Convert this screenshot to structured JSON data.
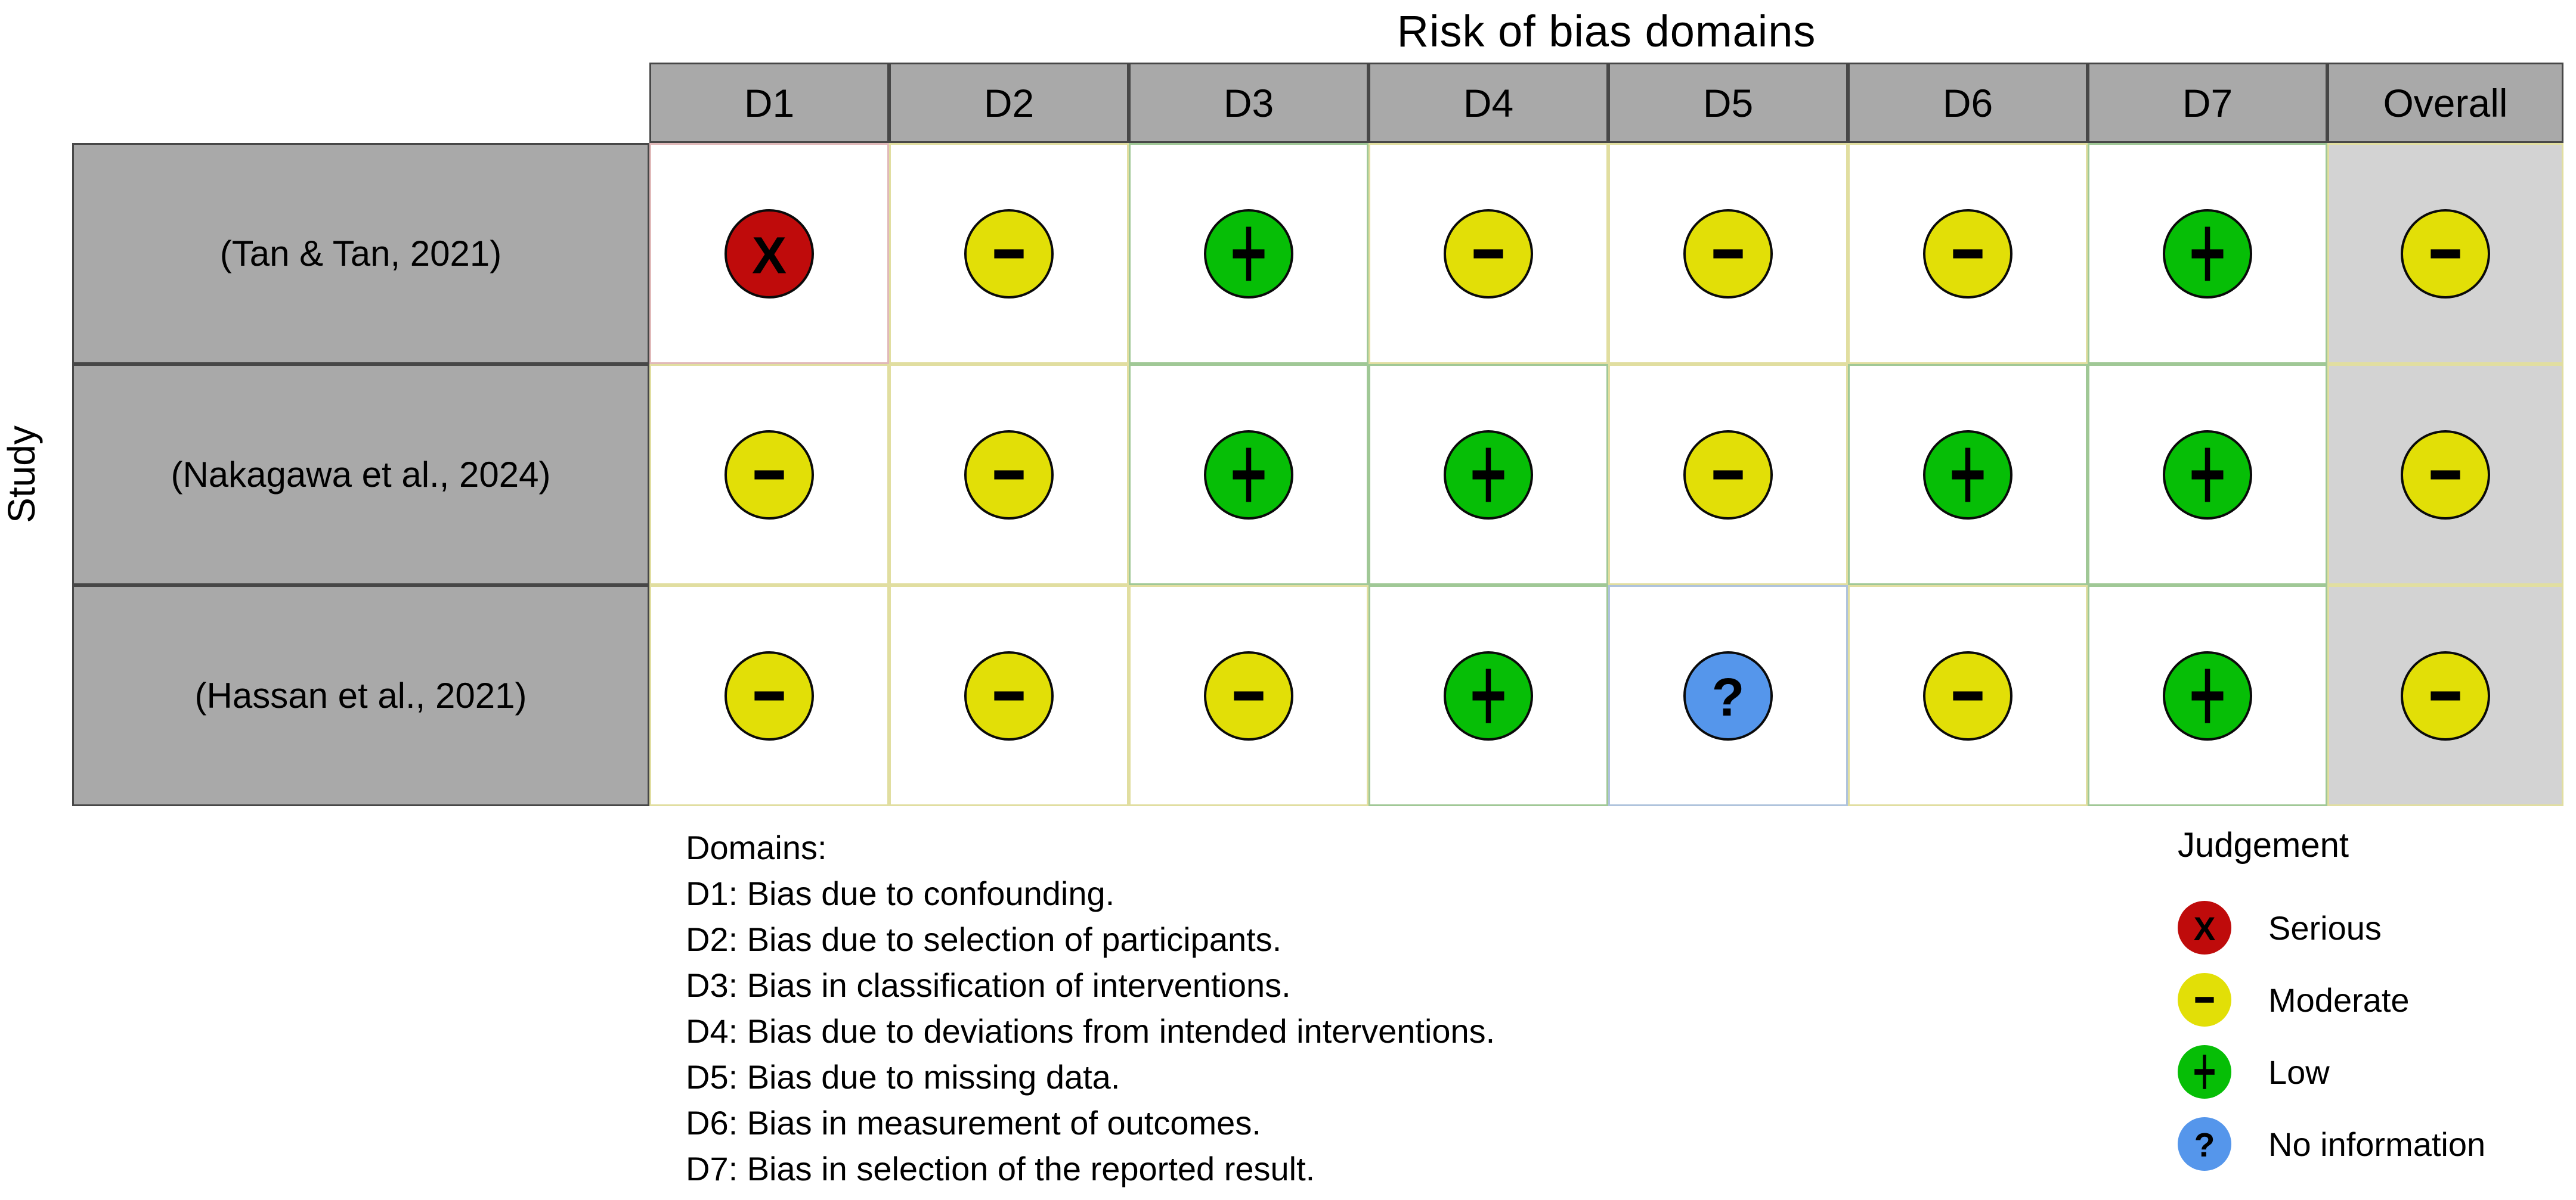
{
  "chart_data": {
    "type": "heatmap",
    "title": "Risk of bias domains",
    "ylabel": "Study",
    "columns": [
      "D1",
      "D2",
      "D3",
      "D4",
      "D5",
      "D6",
      "D7",
      "Overall"
    ],
    "rows": [
      {
        "study": "(Tan & Tan, 2021)",
        "judgements": [
          "serious",
          "moderate",
          "low",
          "moderate",
          "moderate",
          "moderate",
          "low",
          "moderate"
        ]
      },
      {
        "study": "(Nakagawa et al., 2024)",
        "judgements": [
          "moderate",
          "moderate",
          "low",
          "low",
          "moderate",
          "low",
          "low",
          "moderate"
        ]
      },
      {
        "study": "(Hassan et al., 2021)",
        "judgements": [
          "moderate",
          "moderate",
          "moderate",
          "low",
          "no_information",
          "moderate",
          "low",
          "moderate"
        ]
      }
    ],
    "legend_position": "bottom-right",
    "grid": "cell-borders-tinted-by-judgement"
  },
  "judgements": {
    "serious": {
      "label": "Serious",
      "symbol": "X",
      "color": "#BF0B0B",
      "border_tint": "#E1B9B9"
    },
    "moderate": {
      "label": "Moderate",
      "symbol": "-",
      "color": "#E2DF07",
      "border_tint": "#E1DEA0"
    },
    "low": {
      "label": "Low",
      "symbol": "+",
      "color": "#06BE06",
      "border_tint": "#A0C896"
    },
    "no_information": {
      "label": "No information",
      "symbol": "?",
      "color": "#5596EB",
      "border_tint": "#AFC3DC"
    }
  },
  "legend": {
    "title": "Judgement",
    "order": [
      "serious",
      "moderate",
      "low",
      "no_information"
    ]
  },
  "domains_note": {
    "heading": "Domains:",
    "items": [
      "D1: Bias due to confounding.",
      "D2: Bias due to selection of participants.",
      "D3: Bias in classification of interventions.",
      "D4: Bias due to deviations from intended interventions.",
      "D5: Bias due to missing data.",
      "D6: Bias in measurement of outcomes.",
      "D7: Bias in selection of the reported result."
    ]
  },
  "colors": {
    "header_bg": "#A9A9A9",
    "study_bg": "#A9A9A9",
    "overall_bg": "#D3D3D3",
    "table_border": "#474747",
    "circle_outline": "#0A0A0A",
    "background": "#FFFFFF",
    "text": "#000000"
  }
}
